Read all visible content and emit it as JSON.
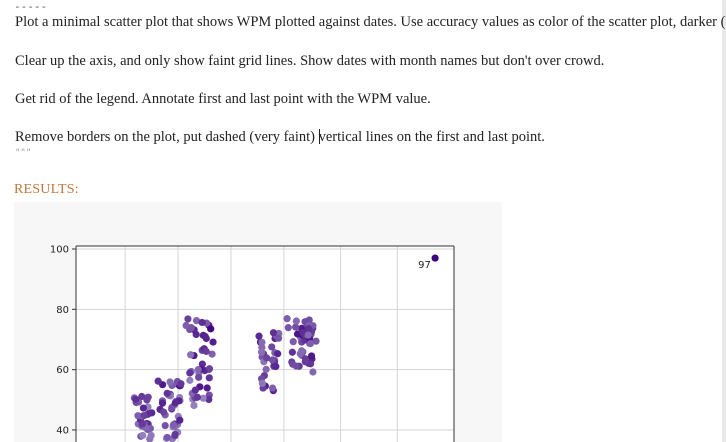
{
  "document": {
    "separator": "-----",
    "paragraphs": [
      "Plot a minimal scatter plot that shows WPM plotted against dates. Use accuracy values as color of the scatter plot, darker (blue p",
      "Clear up the axis, and only show faint grid lines. Show dates with month names but don't over crowd.",
      "Get rid of the legend. Annotate first and last point with the WPM value.",
      "Remove borders on the plot, put dashed (very faint) ",
      "vertical lines on the first and last point."
    ],
    "quote_marks": "\"\"\"",
    "results_label": "RESULTS:"
  },
  "chart_data": {
    "type": "scatter",
    "xlabel": "",
    "ylabel": "",
    "y_ticks": [
      40,
      60,
      80,
      100
    ],
    "y_tick_labels": [
      "40",
      "60",
      "80",
      "100"
    ],
    "ylim_visible": [
      36,
      101
    ],
    "grid": true,
    "colormap": "Purples",
    "annotations": [
      {
        "text": "97",
        "y": 97
      }
    ],
    "clusters": [
      {
        "x_center": 0.18,
        "x_spread": 0.03,
        "y_min": 37,
        "y_max": 52,
        "count": 30
      },
      {
        "x_center": 0.25,
        "x_spread": 0.035,
        "y_min": 37,
        "y_max": 57,
        "count": 40
      },
      {
        "x_center": 0.33,
        "x_spread": 0.04,
        "y_min": 47,
        "y_max": 77,
        "count": 45
      },
      {
        "x_center": 0.51,
        "x_spread": 0.03,
        "y_min": 53,
        "y_max": 73,
        "count": 30
      },
      {
        "x_center": 0.6,
        "x_spread": 0.045,
        "y_min": 59,
        "y_max": 77,
        "count": 45
      }
    ],
    "last_point": {
      "y": 97,
      "x": 0.95
    }
  }
}
